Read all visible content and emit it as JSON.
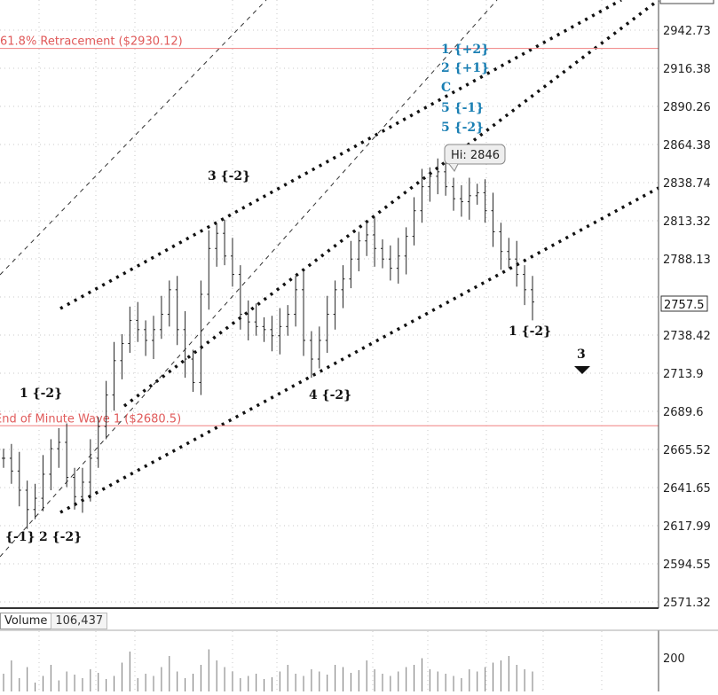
{
  "chart_data": {
    "type": "candlestick",
    "price_axis": {
      "ticks": [
        "2942.73",
        "2916.38",
        "2890.26",
        "2864.38",
        "2838.74",
        "2813.32",
        "2788.13",
        "2738.42",
        "2713.9",
        "2689.6",
        "2665.52",
        "2641.65",
        "2617.99",
        "2594.55",
        "2571.32"
      ],
      "last_price": "2757.5",
      "range": [
        2571.32,
        2966
      ]
    },
    "horizontal_levels": [
      {
        "label": "61.8% Retracement ($2930.12)",
        "price": 2930.12
      },
      {
        "label": "End of Minute Wave  1 ($2680.5)",
        "price": 2680.5
      }
    ],
    "high_callout": "Hi: 2846",
    "wave_labels": [
      {
        "text": "{-1}",
        "color": "black"
      },
      {
        "text": "1 {-2}",
        "color": "black"
      },
      {
        "text": "2 {-2}",
        "color": "black"
      },
      {
        "text": "3 {-2}",
        "color": "black"
      },
      {
        "text": "4 {-2}",
        "color": "black"
      },
      {
        "text": "1 {-2}",
        "color": "black"
      },
      {
        "text": "3",
        "color": "black"
      }
    ],
    "projection_labels": [
      "1 {+2}",
      "2 {+1}",
      "C",
      "5 {-1}",
      "5 {-2}"
    ],
    "price_path": [
      2660,
      2652,
      2640,
      2628,
      2635,
      2650,
      2666,
      2670,
      2648,
      2636,
      2645,
      2660,
      2680,
      2700,
      2722,
      2733,
      2748,
      2742,
      2735,
      2742,
      2752,
      2768,
      2742,
      2723,
      2708,
      2765,
      2795,
      2805,
      2790,
      2778,
      2752,
      2747,
      2744,
      2742,
      2738,
      2744,
      2752,
      2768,
      2735,
      2723,
      2735,
      2752,
      2768,
      2775,
      2788,
      2800,
      2804,
      2795,
      2788,
      2782,
      2790,
      2803,
      2820,
      2836,
      2843,
      2846,
      2836,
      2828,
      2826,
      2830,
      2832,
      2820,
      2806,
      2793,
      2788,
      2778,
      2768,
      2760
    ],
    "volume": {
      "label": "Volume",
      "value": "106,437",
      "axis_tick": "200",
      "bars": [
        40,
        70,
        30,
        55,
        20,
        35,
        60,
        25,
        45,
        38,
        30,
        50,
        42,
        28,
        35,
        65,
        90,
        30,
        40,
        35,
        55,
        80,
        45,
        30,
        40,
        60,
        95,
        70,
        55,
        45,
        30,
        35,
        40,
        28,
        32,
        45,
        60,
        40,
        35,
        50,
        45,
        38,
        60,
        55,
        42,
        48,
        70,
        50,
        40,
        35,
        45,
        55,
        60,
        75,
        50,
        45,
        40,
        35,
        30,
        50,
        45,
        55,
        65,
        70,
        80,
        60,
        50,
        45
      ]
    },
    "grid": true
  }
}
